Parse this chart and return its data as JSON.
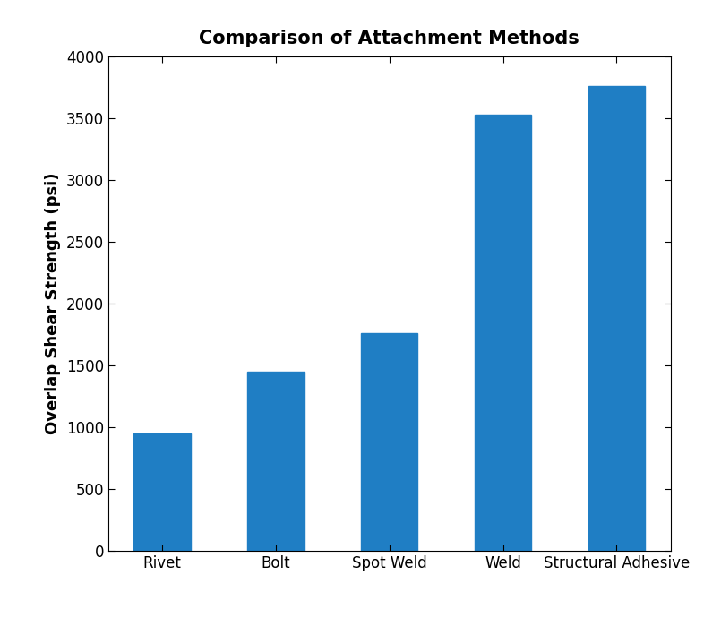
{
  "title": "Comparison of Attachment Methods",
  "categories": [
    "Rivet",
    "Bolt",
    "Spot Weld",
    "Weld",
    "Structural Adhesive"
  ],
  "values": [
    950,
    1450,
    1760,
    3530,
    3760
  ],
  "bar_color": "#1f7ec4",
  "ylabel": "Overlap Shear Strength (psi)",
  "ylim": [
    0,
    4000
  ],
  "yticks": [
    0,
    500,
    1000,
    1500,
    2000,
    2500,
    3000,
    3500,
    4000
  ],
  "title_fontsize": 15,
  "label_fontsize": 13,
  "tick_fontsize": 12,
  "bar_width": 0.5,
  "background_color": "#ffffff",
  "figsize": [
    8.05,
    6.99
  ],
  "dpi": 100
}
